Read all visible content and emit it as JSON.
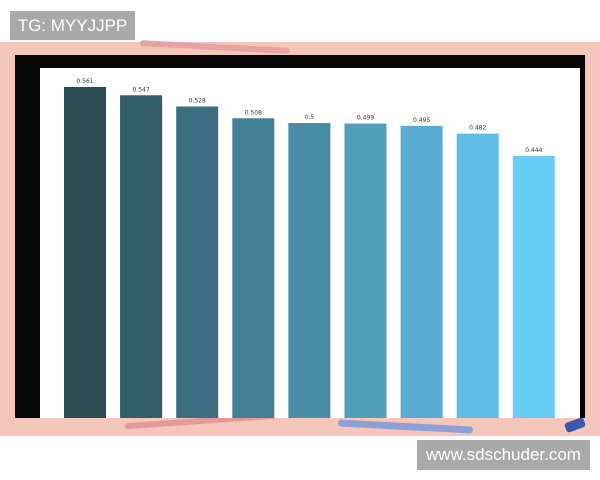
{
  "watermarks": {
    "top_left": "TG: MYYJJPP",
    "bottom_right": "www.sdschuder.com"
  },
  "chart_data": {
    "type": "bar",
    "title": "",
    "xlabel": "",
    "ylabel": "",
    "ylim": [
      0,
      0.561
    ],
    "grid": false,
    "values": [
      0.561,
      0.547,
      0.528,
      0.508,
      0.5,
      0.499,
      0.495,
      0.482,
      0.444
    ],
    "data_labels": [
      "0.561",
      "0.547",
      "0.528",
      "0.508",
      "0.5",
      "0.499",
      "0.495",
      "0.482",
      "0.444"
    ],
    "colors": [
      "#2b4c55",
      "#325e6b",
      "#3a6d80",
      "#447f96",
      "#4a8ca5",
      "#529fbb",
      "#58acd3",
      "#5fbde3",
      "#68cdf6"
    ]
  }
}
